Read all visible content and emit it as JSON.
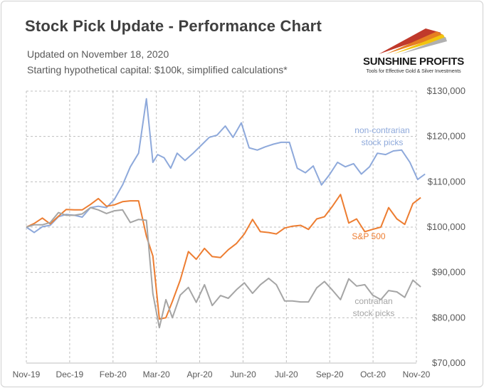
{
  "header": {
    "title": "Stock Pick Update - Performance Chart",
    "updated": "Updated on November 18, 2020",
    "capital": "Starting hypothetical capital: $100k, simplified calculations*"
  },
  "logo": {
    "name": "SUNSHINE PROFITS",
    "tagline": "Tools for Effective Gold & Silver Investments"
  },
  "chart_data": {
    "type": "line",
    "title": "Stock Pick Update - Performance Chart",
    "xlabel": "",
    "ylabel": "",
    "x_ticks": [
      "Nov-19",
      "Dec-19",
      "Feb-20",
      "Mar-20",
      "Apr-20",
      "Jun-20",
      "Jul-20",
      "Sep-20",
      "Oct-20",
      "Nov-20"
    ],
    "x_tick_positions": [
      0,
      1,
      2,
      3,
      4,
      5,
      6,
      7,
      8,
      9
    ],
    "xlim": [
      0,
      9
    ],
    "y_ticks": [
      70000,
      80000,
      90000,
      100000,
      110000,
      120000,
      130000
    ],
    "y_tick_labels": [
      "$70,000",
      "$80,000",
      "$90,000",
      "$100,000",
      "$110,000",
      "$120,000",
      "$130,000"
    ],
    "ylim": [
      70000,
      130000
    ],
    "y_axis_position": "right",
    "grid": true,
    "series": [
      {
        "name": "non-contrarian stock picks",
        "label_lines": [
          "non-contrarian",
          "stock picks"
        ],
        "color": "#8ea9db",
        "x": [
          0,
          0.18,
          0.37,
          0.55,
          0.74,
          0.92,
          1.11,
          1.29,
          1.48,
          1.66,
          1.85,
          2.03,
          2.22,
          2.4,
          2.59,
          2.77,
          2.92,
          3.03,
          3.18,
          3.33,
          3.48,
          3.66,
          3.85,
          4.03,
          4.22,
          4.4,
          4.59,
          4.77,
          4.96,
          5.14,
          5.33,
          5.51,
          5.7,
          5.88,
          6.07,
          6.25,
          6.44,
          6.62,
          6.81,
          6.99,
          7.18,
          7.36,
          7.55,
          7.73,
          7.92,
          8.1,
          8.29,
          8.47,
          8.66,
          8.85
        ],
        "values": [
          100000,
          98800,
          100100,
          100400,
          102300,
          102800,
          102600,
          102200,
          104300,
          104600,
          104300,
          106100,
          109300,
          113300,
          116300,
          128300,
          114300,
          116000,
          115300,
          113000,
          116300,
          114700,
          116300,
          118000,
          119800,
          120300,
          122300,
          119800,
          123000,
          117500,
          117000,
          117700,
          118300,
          118700,
          118700,
          113000,
          112000,
          113500,
          109300,
          111500,
          114300,
          113300,
          114000,
          111700,
          113300,
          116300,
          116000,
          116800,
          117000,
          114300
        ],
        "values_tail_note": "",
        "extra_tail": [
          110500,
          111700
        ],
        "extra_tail_x": [
          9.03,
          9.2
        ]
      },
      {
        "name": "S&P 500",
        "label_lines": [
          "S&P 500"
        ],
        "color": "#ed7d31",
        "x": [
          0,
          0.18,
          0.37,
          0.55,
          0.74,
          0.92,
          1.11,
          1.29,
          1.48,
          1.66,
          1.85,
          2.03,
          2.22,
          2.4,
          2.59,
          2.77,
          2.92,
          3.07,
          3.22,
          3.37,
          3.55,
          3.74,
          3.92,
          4.11,
          4.29,
          4.48,
          4.66,
          4.85,
          5.03,
          5.22,
          5.4,
          5.59,
          5.77,
          5.96,
          6.14,
          6.33,
          6.51,
          6.7,
          6.88,
          7.07,
          7.25,
          7.44,
          7.62,
          7.81,
          7.99,
          8.18,
          8.36,
          8.55,
          8.73,
          8.92,
          9.1
        ],
        "values": [
          100000,
          100800,
          102000,
          100700,
          102400,
          103900,
          103800,
          103800,
          105000,
          106300,
          104600,
          104900,
          105600,
          105800,
          105800,
          98000,
          93600,
          79700,
          80000,
          83600,
          88300,
          94600,
          92900,
          95300,
          93500,
          93300,
          95000,
          96400,
          98500,
          101700,
          99000,
          98800,
          98500,
          99800,
          100200,
          100400,
          99500,
          101800,
          102300,
          104700,
          107200,
          100900,
          101800,
          99000,
          99500,
          100000,
          104300,
          101800,
          100600,
          105200,
          106500
        ]
      },
      {
        "name": "contrarian stock picks",
        "label_lines": [
          "contrarian",
          "stock picks"
        ],
        "color": "#a5a5a5",
        "x": [
          0,
          0.18,
          0.37,
          0.55,
          0.74,
          0.92,
          1.11,
          1.29,
          1.48,
          1.66,
          1.85,
          2.03,
          2.22,
          2.4,
          2.59,
          2.77,
          2.92,
          3.07,
          3.22,
          3.37,
          3.55,
          3.74,
          3.92,
          4.11,
          4.29,
          4.48,
          4.66,
          4.85,
          5.03,
          5.22,
          5.4,
          5.59,
          5.77,
          5.96,
          6.14,
          6.33,
          6.51,
          6.7,
          6.88,
          7.07,
          7.25,
          7.44,
          7.62,
          7.81,
          7.99,
          8.18,
          8.36,
          8.55,
          8.73,
          8.92,
          9.1
        ],
        "values": [
          100000,
          100500,
          100500,
          101000,
          103200,
          102600,
          102600,
          102900,
          104300,
          103800,
          103000,
          103600,
          103800,
          101000,
          101700,
          101500,
          85300,
          77800,
          84000,
          80000,
          85000,
          86700,
          83400,
          87300,
          82700,
          84900,
          84300,
          86200,
          87700,
          85400,
          87300,
          88700,
          87300,
          83700,
          83700,
          83500,
          83500,
          86600,
          88000,
          86000,
          84000,
          88600,
          87000,
          87300,
          85000,
          84000,
          86000,
          85700,
          84500,
          88300,
          86800
        ]
      }
    ]
  }
}
